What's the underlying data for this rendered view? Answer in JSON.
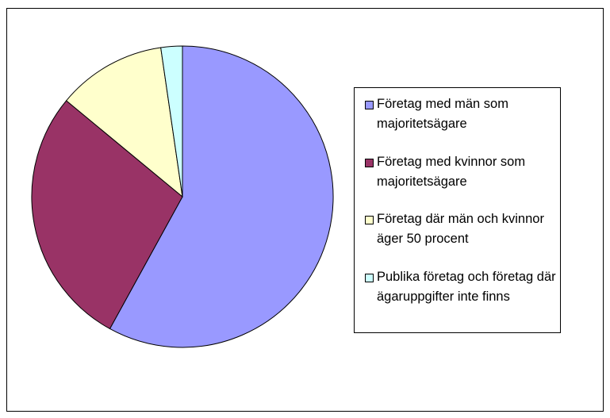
{
  "chart_data": {
    "type": "pie",
    "categories": [
      "Företag med män som majoritetsägare",
      "Företag med kvinnor som majoritetsägare",
      "Företag där män och kvinnor äger 50 procent",
      "Publika företag och företag där ägaruppgifter inte finns"
    ],
    "values": [
      58,
      28,
      11.7,
      2.3
    ],
    "colors": [
      "#9999ff",
      "#993366",
      "#ffffcc",
      "#ccffff"
    ],
    "legend": "right"
  }
}
